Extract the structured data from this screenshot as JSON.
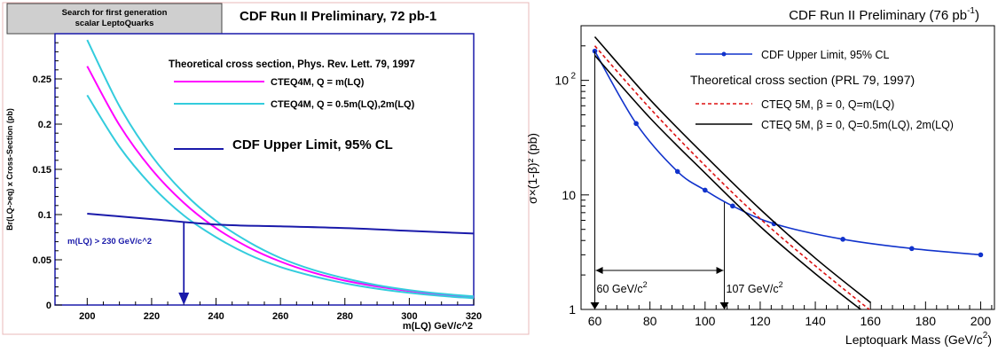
{
  "chart_data": [
    {
      "type": "line",
      "title": "CDF Run II Preliminary, 72 pb-1",
      "header_box": [
        "Search for first generation",
        "scalar LeptoQuarks"
      ],
      "xlabel": "m(LQ) GeV/c^2",
      "ylabel": "Br(LQ->eq) x Cross-Section (pb)",
      "xlim": [
        190,
        320
      ],
      "ylim": [
        0,
        0.3
      ],
      "x_ticks": [
        200,
        220,
        240,
        260,
        280,
        300,
        320
      ],
      "y_ticks": [
        0,
        0.05,
        0.1,
        0.15,
        0.2,
        0.25
      ],
      "y_tick_labels": [
        "0",
        "0.05",
        "0.1",
        "0.15",
        "0.2",
        "0.25"
      ],
      "legend_header": "Theoretical cross section, Phys. Rev. Lett. 79, 1997",
      "series": [
        {
          "name": "CTEQ4M, Q = m(LQ)",
          "color": "#ff00ff",
          "x": [
            200,
            210,
            220,
            230,
            240,
            250,
            260,
            270,
            280,
            290,
            300,
            310,
            320
          ],
          "y": [
            0.264,
            0.199,
            0.15,
            0.113,
            0.085,
            0.064,
            0.048,
            0.036,
            0.027,
            0.0205,
            0.0155,
            0.0115,
            0.0085
          ]
        },
        {
          "name": "CTEQ4M, Q = 0.5m(LQ),2m(LQ)",
          "color": "#33ccdd",
          "x": [
            200,
            210,
            220,
            230,
            240,
            250,
            260,
            270,
            280,
            290,
            300,
            310,
            320
          ],
          "y": [
            0.293,
            0.22,
            0.165,
            0.124,
            0.093,
            0.07,
            0.052,
            0.039,
            0.0295,
            0.022,
            0.0165,
            0.0125,
            0.0095
          ]
        },
        {
          "name": "",
          "color": "#33ccdd",
          "x": [
            200,
            210,
            220,
            230,
            240,
            250,
            260,
            270,
            280,
            290,
            300,
            310,
            320
          ],
          "y": [
            0.232,
            0.175,
            0.132,
            0.099,
            0.075,
            0.056,
            0.042,
            0.032,
            0.024,
            0.018,
            0.0135,
            0.01,
            0.0075
          ]
        },
        {
          "name": "CDF Upper Limit, 95% CL",
          "color": "#1a1aaa",
          "x": [
            200,
            220,
            240,
            260,
            280,
            300,
            320
          ],
          "y": [
            0.101,
            0.095,
            0.089,
            0.087,
            0.085,
            0.082,
            0.079
          ]
        }
      ],
      "annotation": {
        "text": "m(LQ) > 230 GeV/c^2",
        "x": 230,
        "y_from": 0.091,
        "y_to": 0.0
      }
    },
    {
      "type": "line",
      "title": "CDF Run II Preliminary (76 pb",
      "title_sup": "-1",
      "title_close": ")",
      "xlabel": "Leptoquark Mass (GeV/c",
      "xlabel_sup": "2",
      "xlabel_close": ")",
      "ylabel": "σ×(1-β)² (pb)",
      "xlim": [
        55,
        205
      ],
      "ylim": [
        1,
        300
      ],
      "log_y": true,
      "x_ticks": [
        60,
        80,
        100,
        120,
        140,
        160,
        180,
        200
      ],
      "y_tick_labels": [
        "1",
        "10",
        "10"
      ],
      "y_tick_sup": "2",
      "series": [
        {
          "name": "CDF Upper Limit, 95% CL",
          "color": "#1133cc",
          "markers": true,
          "x": [
            60,
            75,
            90,
            100,
            110,
            125,
            150,
            175,
            200
          ],
          "y": [
            180,
            42,
            16,
            11,
            8,
            5.6,
            4.1,
            3.4,
            3.0
          ]
        },
        {
          "name": "CTEQ 5M,  β = 0, Q=m(LQ)",
          "color": "#dd1111",
          "dashed": true,
          "x": [
            60,
            80,
            100,
            120,
            140,
            160
          ],
          "y": [
            200,
            57,
            18,
            6.2,
            2.4,
            0.98
          ]
        },
        {
          "name": "CTEQ 5M,  β = 0, Q=0.5m(LQ), 2m(LQ)",
          "color": "#000000",
          "x": [
            60,
            80,
            100,
            120,
            140,
            160
          ],
          "y": [
            240,
            68,
            22,
            7.5,
            2.8,
            1.15
          ]
        },
        {
          "name": "",
          "color": "#000000",
          "x": [
            60,
            80,
            100,
            120,
            140,
            160
          ],
          "y": [
            165,
            47,
            15.5,
            5.3,
            2.05,
            0.86
          ]
        }
      ],
      "legend_mid_header": "Theoretical cross section (PRL 79, 1997)",
      "annotations": [
        {
          "text": "60 GeV/c",
          "sup": "2",
          "x": 60
        },
        {
          "text": "107 GeV/c",
          "sup": "2",
          "x": 107
        }
      ]
    }
  ]
}
